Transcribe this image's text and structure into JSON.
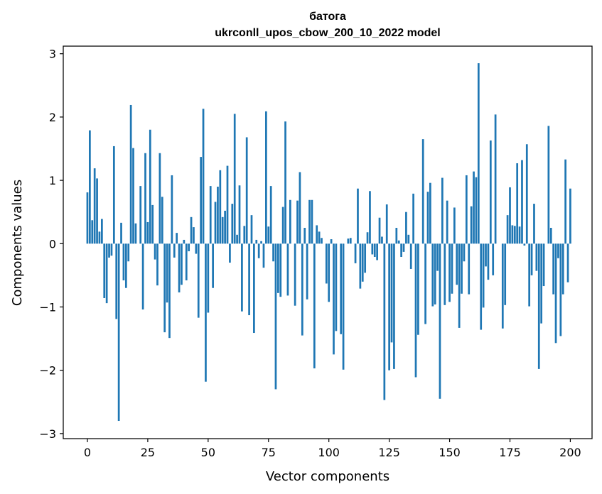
{
  "chart_data": {
    "type": "bar",
    "title_line1": "батога",
    "title_line2": "ukrconll_upos_cbow_200_10_2022 model",
    "xlabel": "Vector components",
    "ylabel": "Components values",
    "xlim": [
      -10,
      209
    ],
    "ylim": [
      -3.08,
      3.12
    ],
    "xticks": [
      0,
      25,
      50,
      75,
      100,
      125,
      150,
      175,
      200
    ],
    "yticks": [
      3,
      2,
      1,
      0,
      -1,
      -2,
      -3
    ],
    "ytick_labels": [
      "3",
      "2",
      "1",
      "0",
      "−1",
      "−2",
      "−3"
    ],
    "bar_color": "#1f77b4",
    "grid": false,
    "values": [
      0.81,
      1.79,
      0.37,
      1.19,
      1.03,
      0.19,
      0.39,
      -0.86,
      -0.94,
      -0.22,
      -0.19,
      1.54,
      -1.19,
      -2.8,
      0.33,
      -0.58,
      -0.7,
      -0.28,
      2.19,
      1.51,
      0.32,
      0.0,
      0.91,
      -1.04,
      1.43,
      0.34,
      1.8,
      0.61,
      -0.25,
      -0.66,
      1.43,
      0.74,
      -1.4,
      -0.93,
      -1.49,
      1.08,
      -0.22,
      0.17,
      -0.77,
      -0.65,
      0.06,
      -0.58,
      -0.12,
      0.42,
      0.26,
      -0.16,
      -1.17,
      1.37,
      2.13,
      -2.18,
      -1.09,
      0.91,
      -0.7,
      0.66,
      0.9,
      1.16,
      0.42,
      0.52,
      1.23,
      -0.3,
      0.63,
      2.05,
      0.14,
      0.92,
      -1.07,
      0.28,
      1.68,
      -1.13,
      0.45,
      -1.41,
      0.06,
      -0.23,
      0.04,
      -0.38,
      2.09,
      0.27,
      0.91,
      -0.28,
      -2.3,
      -0.78,
      -0.84,
      0.58,
      1.93,
      -0.82,
      0.69,
      0.0,
      -0.98,
      0.68,
      1.13,
      -1.45,
      0.25,
      -0.88,
      0.69,
      0.69,
      -1.97,
      0.29,
      0.19,
      0.09,
      0.0,
      -0.63,
      -0.92,
      0.07,
      -1.75,
      -1.38,
      0.0,
      -1.43,
      -1.99,
      0.0,
      0.08,
      0.09,
      0.0,
      -0.31,
      0.87,
      -0.71,
      -0.6,
      -0.46,
      0.18,
      0.83,
      -0.17,
      -0.21,
      -0.26,
      0.41,
      0.11,
      -2.47,
      0.62,
      -2.0,
      -1.56,
      -1.98,
      0.25,
      0.05,
      -0.21,
      -0.13,
      0.5,
      0.14,
      -0.4,
      0.79,
      -2.11,
      -1.44,
      0.0,
      1.65,
      -1.27,
      0.82,
      0.96,
      -0.99,
      -0.96,
      -0.43,
      -2.45,
      1.04,
      -0.97,
      0.68,
      -0.92,
      -0.79,
      0.57,
      -0.65,
      -1.33,
      -0.79,
      -0.28,
      1.08,
      -0.8,
      0.59,
      1.14,
      1.05,
      2.85,
      -1.36,
      -1.01,
      -0.36,
      -0.57,
      1.63,
      -0.5,
      2.04,
      0.0,
      0.0,
      -1.34,
      -0.97,
      0.45,
      0.89,
      0.29,
      0.28,
      1.27,
      0.27,
      1.32,
      -0.03,
      1.57,
      -0.99,
      -0.5,
      0.63,
      -0.43,
      -1.98,
      -1.26,
      -0.67,
      0.0,
      1.86,
      0.25,
      -0.8,
      -1.57,
      -0.23,
      -1.46,
      -0.8,
      1.33,
      -0.61,
      0.87
    ]
  }
}
